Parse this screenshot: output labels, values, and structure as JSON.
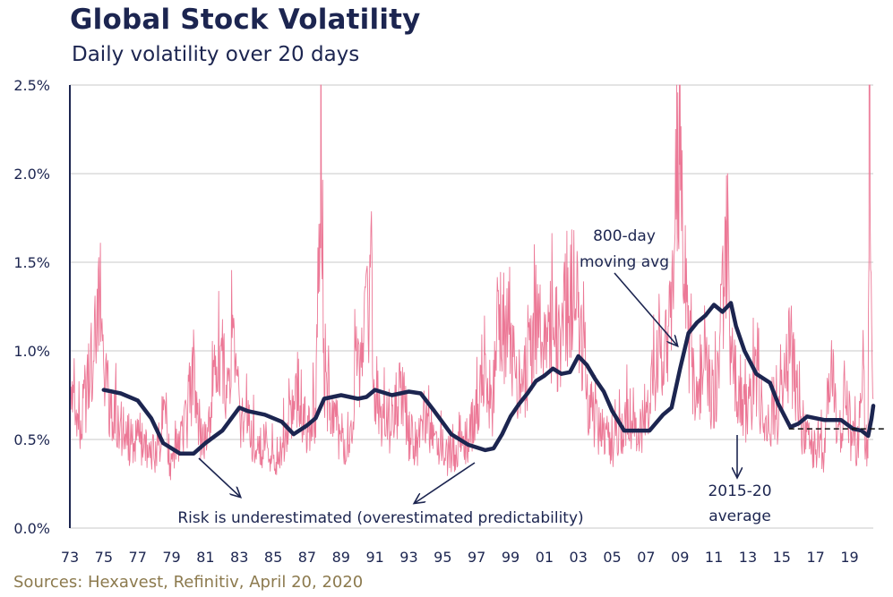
{
  "header": {
    "title": "Global Stock Volatility",
    "subtitle": "Daily volatility over 20 days"
  },
  "footer": {
    "source": "Sources: Hexavest, Refinitiv, April 20, 2020"
  },
  "colors": {
    "daily_series": "#ec7896",
    "moving_avg": "#1c2550",
    "grid": "#c8c8c8",
    "text": "#1c2550",
    "source_text": "#8c7a4e"
  },
  "chart_data": {
    "type": "line",
    "title": "Global Stock Volatility",
    "subtitle": "Daily volatility over 20 days",
    "xlabel": "",
    "ylabel": "",
    "xlim": [
      1973,
      2020.4
    ],
    "ylim": [
      0,
      2.5
    ],
    "y_unit": "%",
    "grid": true,
    "x_tick_labels": [
      "73",
      "75",
      "77",
      "79",
      "81",
      "83",
      "85",
      "87",
      "89",
      "91",
      "93",
      "95",
      "97",
      "99",
      "01",
      "03",
      "05",
      "07",
      "09",
      "11",
      "13",
      "15",
      "17",
      "19"
    ],
    "x_tick_years": [
      1973,
      1975,
      1977,
      1979,
      1981,
      1983,
      1985,
      1987,
      1989,
      1991,
      1993,
      1995,
      1997,
      1999,
      2001,
      2003,
      2005,
      2007,
      2009,
      2011,
      2013,
      2015,
      2017,
      2019
    ],
    "y_tick_labels": [
      "0.0%",
      "0.5%",
      "1.0%",
      "1.5%",
      "2.0%",
      "2.5%"
    ],
    "y_tick_values": [
      0,
      0.5,
      1.0,
      1.5,
      2.0,
      2.5
    ],
    "series": [
      {
        "key": "daily",
        "x": [
          1973.0,
          1973.5,
          1974.0,
          1974.5,
          1974.8,
          1975.0,
          1975.5,
          1976.0,
          1976.5,
          1977.0,
          1977.5,
          1978.0,
          1978.5,
          1979.0,
          1979.5,
          1980.0,
          1980.3,
          1980.7,
          1981.0,
          1981.5,
          1982.0,
          1982.3,
          1982.7,
          1983.0,
          1983.5,
          1984.0,
          1984.5,
          1985.0,
          1985.5,
          1986.0,
          1986.5,
          1987.0,
          1987.5,
          1987.8,
          1988.0,
          1988.5,
          1989.0,
          1989.5,
          1989.9,
          1990.3,
          1990.7,
          1991.0,
          1991.5,
          1992.0,
          1992.5,
          1993.0,
          1993.5,
          1994.0,
          1994.5,
          1995.0,
          1995.5,
          1996.0,
          1996.5,
          1997.0,
          1997.5,
          1997.9,
          1998.3,
          1998.7,
          1999.0,
          1999.5,
          2000.0,
          2000.5,
          2001.0,
          2001.5,
          2001.9,
          2002.3,
          2002.7,
          2003.0,
          2003.5,
          2004.0,
          2004.5,
          2005.0,
          2005.5,
          2006.0,
          2006.5,
          2007.0,
          2007.5,
          2008.0,
          2008.5,
          2008.8,
          2009.0,
          2009.3,
          2009.7,
          2010.0,
          2010.4,
          2010.8,
          2011.0,
          2011.4,
          2011.8,
          2012.0,
          2012.5,
          2013.0,
          2013.5,
          2014.0,
          2014.5,
          2015.0,
          2015.5,
          2016.0,
          2016.5,
          2017.0,
          2017.5,
          2018.0,
          2018.3,
          2018.7,
          2019.0,
          2019.5,
          2019.8,
          2020.0,
          2020.1,
          2020.15,
          2020.2,
          2020.3,
          2020.4
        ],
        "y": [
          0.85,
          0.6,
          0.9,
          1.2,
          1.5,
          0.95,
          0.75,
          0.65,
          0.55,
          0.6,
          0.5,
          0.45,
          0.7,
          0.4,
          0.55,
          0.75,
          1.05,
          0.6,
          0.6,
          0.95,
          1.1,
          0.8,
          1.35,
          0.7,
          0.7,
          0.5,
          0.55,
          0.45,
          0.5,
          0.7,
          0.9,
          0.6,
          0.75,
          2.5,
          0.9,
          0.7,
          0.6,
          0.55,
          1.05,
          1.15,
          1.55,
          0.85,
          0.7,
          0.65,
          0.85,
          0.6,
          0.55,
          0.7,
          0.65,
          0.5,
          0.45,
          0.55,
          0.55,
          0.75,
          1.0,
          0.7,
          1.45,
          1.25,
          1.1,
          0.9,
          1.0,
          1.35,
          1.15,
          1.3,
          1.2,
          1.45,
          1.55,
          1.35,
          0.85,
          0.7,
          0.6,
          0.55,
          0.6,
          0.75,
          0.6,
          0.75,
          1.0,
          1.15,
          1.25,
          2.5,
          2.5,
          1.5,
          1.0,
          0.8,
          1.2,
          0.85,
          0.8,
          1.2,
          2.0,
          1.05,
          0.85,
          0.75,
          1.0,
          0.6,
          0.7,
          0.8,
          1.2,
          0.75,
          0.55,
          0.5,
          0.5,
          1.05,
          0.55,
          0.8,
          0.6,
          0.55,
          1.0,
          0.4,
          0.6,
          2.5,
          2.5,
          1.4,
          0.85
        ]
      },
      {
        "key": "moving_avg",
        "x": [
          1975.0,
          1976.0,
          1977.0,
          1977.8,
          1978.5,
          1979.5,
          1980.3,
          1981.0,
          1982.0,
          1983.0,
          1983.5,
          1984.5,
          1985.5,
          1986.2,
          1987.0,
          1987.5,
          1988.0,
          1989.0,
          1990.0,
          1990.5,
          1991.0,
          1992.0,
          1993.0,
          1993.7,
          1994.5,
          1995.5,
          1996.5,
          1997.5,
          1998.0,
          1998.5,
          1999.0,
          1999.5,
          2000.0,
          2000.5,
          2001.0,
          2001.5,
          2002.0,
          2002.5,
          2003.0,
          2003.5,
          2004.0,
          2004.5,
          2005.0,
          2005.7,
          2006.5,
          2007.2,
          2008.0,
          2008.5,
          2009.0,
          2009.5,
          2010.0,
          2010.5,
          2011.0,
          2011.5,
          2012.0,
          2012.3,
          2012.8,
          2013.5,
          2014.3,
          2014.8,
          2015.5,
          2016.0,
          2016.5,
          2017.5,
          2018.5,
          2019.2,
          2019.7,
          2020.1,
          2020.3,
          2020.4
        ],
        "y": [
          0.78,
          0.76,
          0.72,
          0.62,
          0.48,
          0.42,
          0.42,
          0.48,
          0.55,
          0.68,
          0.66,
          0.64,
          0.6,
          0.53,
          0.58,
          0.62,
          0.73,
          0.75,
          0.73,
          0.74,
          0.78,
          0.75,
          0.77,
          0.76,
          0.66,
          0.53,
          0.47,
          0.44,
          0.45,
          0.53,
          0.63,
          0.7,
          0.76,
          0.83,
          0.86,
          0.9,
          0.87,
          0.88,
          0.97,
          0.92,
          0.84,
          0.77,
          0.66,
          0.55,
          0.55,
          0.55,
          0.64,
          0.68,
          0.9,
          1.1,
          1.16,
          1.2,
          1.26,
          1.22,
          1.27,
          1.14,
          1.0,
          0.87,
          0.82,
          0.7,
          0.57,
          0.59,
          0.63,
          0.61,
          0.61,
          0.56,
          0.55,
          0.52,
          0.62,
          0.69
        ]
      },
      {
        "key": "avg_2015_20",
        "x": [
          2015.0,
          2020.4
        ],
        "y": [
          0.56,
          0.56
        ]
      }
    ],
    "annotations": {
      "moving_avg_label_1": "800-day",
      "moving_avg_label_2": "moving avg",
      "average_label_1": "2015-20",
      "average_label_2": "average",
      "risk_label": "Risk is underestimated (overestimated predictability)"
    }
  }
}
